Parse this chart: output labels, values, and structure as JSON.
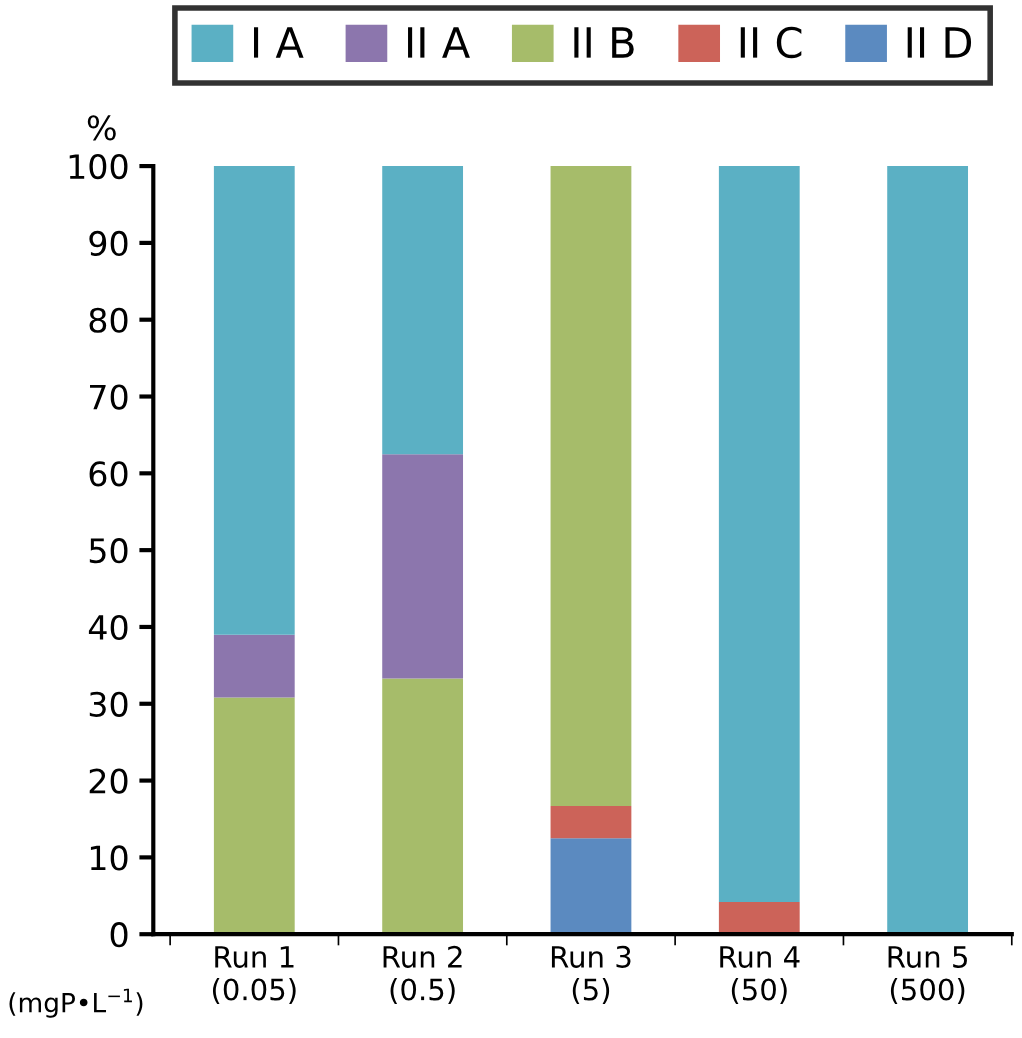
{
  "chart_data": {
    "type": "bar",
    "stacked": true,
    "categories": [
      "Run 1\n(0.05)",
      "Run 2\n(0.5)",
      "Run 3\n(5)",
      "Run 4\n(50)",
      "Run 5\n(500)"
    ],
    "xlabel": "(mgP•L$^{−1}$)",
    "ylabel": "%",
    "series": [
      {
        "name": "II D",
        "color": "#5b8ac0",
        "values": [
          null,
          null,
          12.5,
          null,
          null
        ]
      },
      {
        "name": "II C",
        "color": "#cc6359",
        "values": [
          null,
          null,
          4.2,
          4.2,
          null
        ]
      },
      {
        "name": "II B",
        "color": "#a6bc6a",
        "values": [
          30.8,
          33.3,
          83.3,
          null,
          null
        ]
      },
      {
        "name": "II A",
        "color": "#8c76ad",
        "values": [
          8.2,
          29.2,
          null,
          null,
          null
        ]
      },
      {
        "name": "I A",
        "color": "#5bb0c4",
        "values": [
          61,
          37.5,
          null,
          95.8,
          100
        ]
      }
    ],
    "ylim": [
      0,
      100
    ],
    "yticks": [
      0,
      10,
      20,
      30,
      40,
      50,
      60,
      70,
      80,
      90,
      100
    ],
    "grid": false,
    "legend": "top"
  }
}
